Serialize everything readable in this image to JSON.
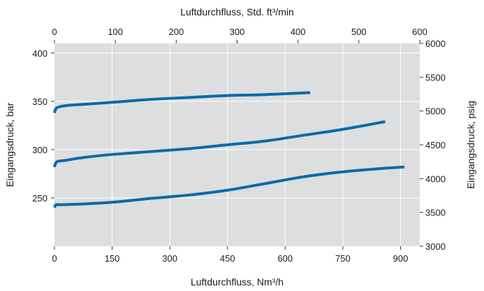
{
  "chart_data": {
    "type": "line",
    "title": "",
    "xlabel": "Luftdurchfluss, Nm³/h",
    "x2label": "Luftdurchfluss, Std. ft³/min",
    "ylabel": "Eingangsdruck, bar",
    "y2label": "Eingangsdruck, psig",
    "xlim": [
      0,
      950
    ],
    "ylim": [
      200,
      410
    ],
    "x2lim": [
      0,
      600
    ],
    "y2lim": [
      3000,
      6000
    ],
    "xticks": [
      0,
      150,
      300,
      450,
      600,
      750,
      900
    ],
    "yticks": [
      250,
      300,
      350,
      400
    ],
    "x2ticks": [
      0,
      100,
      200,
      300,
      400,
      500,
      600
    ],
    "y2ticks": [
      3000,
      3500,
      4000,
      4500,
      5000,
      5500,
      6000
    ],
    "xtick_labels": [
      "0",
      "150",
      "300",
      "450",
      "600",
      "750",
      "900"
    ],
    "ytick_labels": [
      "250",
      "300",
      "350",
      "400"
    ],
    "x2tick_labels": [
      "0",
      "100",
      "200",
      "300",
      "400",
      "500",
      "600"
    ],
    "y2tick_labels": [
      "3000",
      "3500",
      "4000",
      "4500",
      "5000",
      "5500",
      "6000"
    ],
    "grid": true,
    "line_color": "#0a6aa8",
    "plot_background": "#dcdedf",
    "series": [
      {
        "x": [
          0,
          2,
          5,
          10,
          20,
          40,
          80,
          150,
          250,
          350,
          450,
          550,
          665
        ],
        "y": [
          338,
          341,
          343,
          344,
          345,
          346,
          347,
          349,
          352,
          354,
          356,
          357,
          359
        ]
      },
      {
        "x": [
          0,
          2,
          5,
          10,
          30,
          60,
          100,
          150,
          250,
          350,
          450,
          550,
          650,
          750,
          860
        ],
        "y": [
          282,
          285,
          287,
          288,
          289,
          291,
          293,
          295,
          298,
          301,
          305,
          309,
          315,
          321,
          329
        ]
      },
      {
        "x": [
          0,
          2,
          5,
          20,
          60,
          150,
          250,
          350,
          450,
          550,
          650,
          750,
          850,
          910
        ],
        "y": [
          240,
          242,
          243,
          243,
          243.5,
          245.5,
          249.5,
          253,
          258,
          265,
          272,
          277,
          280.5,
          282
        ]
      }
    ]
  }
}
